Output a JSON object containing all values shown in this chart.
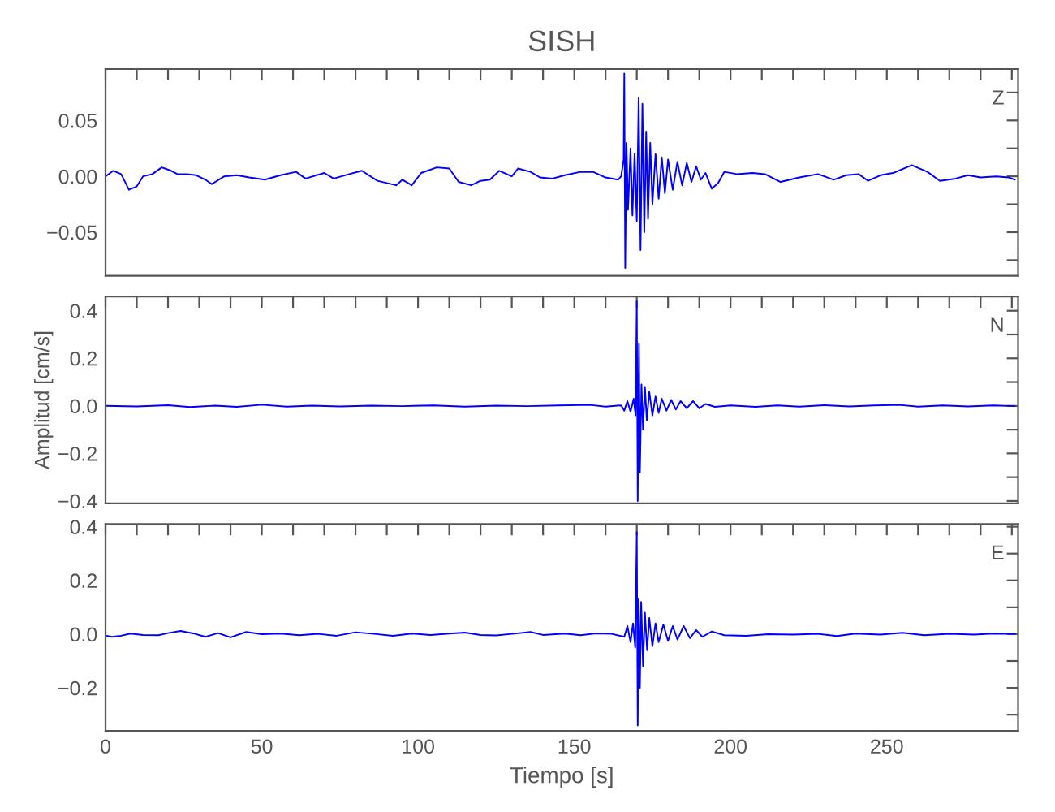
{
  "chart_data": [
    {
      "type": "line",
      "title": "SISH",
      "annotations": [
        "Z"
      ],
      "tick_labels": "y",
      "grid": false,
      "legend": false,
      "xlim": [
        0,
        292
      ],
      "ylim": [
        -0.089,
        0.096
      ],
      "xticks": [
        0,
        {
          "value": 10,
          "label": null
        },
        {
          "value": 20,
          "label": null
        },
        {
          "value": 30,
          "label": null
        },
        {
          "value": 40,
          "label": null
        },
        50,
        {
          "value": 60,
          "label": null
        },
        {
          "value": 70,
          "label": null
        },
        {
          "value": 80,
          "label": null
        },
        {
          "value": 90,
          "label": null
        },
        100,
        {
          "value": 110,
          "label": null
        },
        {
          "value": 120,
          "label": null
        },
        {
          "value": 130,
          "label": null
        },
        {
          "value": 140,
          "label": null
        },
        150,
        {
          "value": 160,
          "label": null
        },
        {
          "value": 170,
          "label": null
        },
        {
          "value": 180,
          "label": null
        },
        {
          "value": 190,
          "label": null
        },
        200,
        {
          "value": 210,
          "label": null
        },
        {
          "value": 220,
          "label": null
        },
        {
          "value": 230,
          "label": null
        },
        {
          "value": 240,
          "label": null
        },
        250,
        {
          "value": 260,
          "label": null
        },
        {
          "value": 270,
          "label": null
        },
        {
          "value": 280,
          "label": null
        },
        {
          "value": 290,
          "label": null
        }
      ],
      "yticks": [
        {
          "value": -0.075,
          "label": null
        },
        {
          "value": -0.05,
          "label": "−0.05"
        },
        {
          "value": -0.025,
          "label": null
        },
        {
          "value": 0,
          "label": "0.00"
        },
        {
          "value": 0.025,
          "label": null
        },
        {
          "value": 0.05,
          "label": "0.05"
        },
        {
          "value": 0.075,
          "label": null
        }
      ],
      "series": [
        {
          "color": "#0000ff",
          "x": [
            0,
            2.5,
            5,
            7.5,
            10,
            12,
            15,
            18,
            21,
            23,
            26,
            29,
            32,
            34,
            38,
            42,
            46,
            51,
            56,
            61,
            64,
            70,
            73,
            78,
            82,
            87,
            93,
            95,
            98,
            101,
            106,
            110,
            113,
            117,
            120,
            123,
            126,
            130,
            132,
            136,
            139,
            143,
            147,
            152,
            156,
            160,
            164,
            165,
            165.8,
            166,
            166.3,
            166.7,
            167.2,
            168,
            168.6,
            169.3,
            170,
            170.6,
            171.2,
            171.8,
            172.4,
            173,
            173.6,
            174.3,
            175,
            176,
            177,
            178,
            179,
            180,
            181.5,
            183,
            184.5,
            186,
            187.5,
            189,
            190.5,
            192,
            194,
            196,
            198,
            202,
            207,
            211,
            216,
            222,
            228,
            233,
            237,
            241,
            244,
            248,
            252,
            258,
            263,
            267,
            272,
            276,
            280,
            285,
            289,
            291
          ],
          "values": [
            0,
            0.005,
            0.002,
            -0.012,
            -0.009,
            0,
            0.002,
            0.008,
            0.005,
            0.002,
            0.002,
            0.001,
            -0.003,
            -0.007,
            0,
            0.001,
            -0.001,
            -0.003,
            0.001,
            0.004,
            -0.002,
            0.003,
            -0.002,
            0.002,
            0.005,
            -0.004,
            -0.008,
            -0.003,
            -0.008,
            0.003,
            0.008,
            0.007,
            -0.005,
            -0.008,
            -0.004,
            -0.003,
            0.005,
            0,
            0.007,
            0.004,
            -0.001,
            -0.002,
            0.001,
            0.004,
            0.004,
            -0.001,
            -0.003,
            0,
            0.015,
            0.092,
            -0.082,
            0.03,
            -0.03,
            0.025,
            -0.035,
            0.02,
            -0.04,
            0.07,
            -0.066,
            0.065,
            -0.05,
            0.04,
            -0.038,
            0.03,
            -0.025,
            0.02,
            -0.02,
            0.017,
            -0.015,
            0.015,
            -0.012,
            0.013,
            -0.008,
            0.012,
            -0.005,
            0.009,
            -0.003,
            0.003,
            -0.011,
            -0.006,
            0.004,
            0.002,
            0.003,
            0.002,
            -0.005,
            -0.001,
            0.002,
            -0.003,
            0.001,
            0.002,
            -0.004,
            0.001,
            0.003,
            0.01,
            0.004,
            -0.004,
            -0.002,
            0.001,
            -0.001,
            0,
            -0.001,
            -0.003
          ]
        }
      ]
    },
    {
      "type": "line",
      "ylabel": "Amplitud [cm/s]",
      "annotations": [
        "N"
      ],
      "tick_labels": "y",
      "grid": false,
      "legend": false,
      "xlim": [
        0,
        292
      ],
      "ylim": [
        -0.41,
        0.46
      ],
      "xticks": [
        0,
        {
          "value": 10,
          "label": null
        },
        {
          "value": 20,
          "label": null
        },
        {
          "value": 30,
          "label": null
        },
        {
          "value": 40,
          "label": null
        },
        50,
        {
          "value": 60,
          "label": null
        },
        {
          "value": 70,
          "label": null
        },
        {
          "value": 80,
          "label": null
        },
        {
          "value": 90,
          "label": null
        },
        100,
        {
          "value": 110,
          "label": null
        },
        {
          "value": 120,
          "label": null
        },
        {
          "value": 130,
          "label": null
        },
        {
          "value": 140,
          "label": null
        },
        150,
        {
          "value": 160,
          "label": null
        },
        {
          "value": 170,
          "label": null
        },
        {
          "value": 180,
          "label": null
        },
        {
          "value": 190,
          "label": null
        },
        200,
        {
          "value": 210,
          "label": null
        },
        {
          "value": 220,
          "label": null
        },
        {
          "value": 230,
          "label": null
        },
        {
          "value": 240,
          "label": null
        },
        250,
        {
          "value": 260,
          "label": null
        },
        {
          "value": 270,
          "label": null
        },
        {
          "value": 280,
          "label": null
        },
        {
          "value": 290,
          "label": null
        }
      ],
      "yticks": [
        {
          "value": -0.4,
          "label": "−0.4"
        },
        {
          "value": -0.3,
          "label": null
        },
        {
          "value": -0.2,
          "label": "−0.2"
        },
        {
          "value": -0.1,
          "label": null
        },
        {
          "value": 0,
          "label": "0.0"
        },
        {
          "value": 0.1,
          "label": null
        },
        {
          "value": 0.2,
          "label": "0.2"
        },
        {
          "value": 0.3,
          "label": null
        },
        {
          "value": 0.4,
          "label": "0.4"
        }
      ],
      "series": [
        {
          "color": "#0000ff",
          "x": [
            0,
            10,
            20,
            27,
            35,
            42,
            50,
            58,
            66,
            75,
            85,
            95,
            105,
            115,
            125,
            135,
            145,
            155,
            160,
            165,
            166,
            167,
            168,
            169,
            169.6,
            170,
            170.3,
            170.7,
            171,
            171.5,
            172,
            172.6,
            173.2,
            174,
            175,
            176,
            177,
            178,
            179.5,
            181,
            182.5,
            184,
            186,
            188,
            190,
            192,
            195,
            200,
            208,
            215,
            222,
            230,
            238,
            246,
            254,
            260,
            268,
            276,
            284,
            291
          ],
          "values": [
            0,
            -0.002,
            0.003,
            -0.005,
            0.001,
            -0.004,
            0.005,
            -0.003,
            0.001,
            -0.002,
            0.001,
            -0.001,
            0.002,
            -0.003,
            0.001,
            -0.001,
            0.002,
            0.004,
            -0.003,
            0.002,
            -0.02,
            0.02,
            -0.025,
            0.03,
            -0.04,
            0.44,
            -0.4,
            0.26,
            -0.28,
            0.09,
            -0.1,
            0.08,
            -0.06,
            0.06,
            -0.04,
            0.04,
            -0.03,
            0.03,
            -0.02,
            0.025,
            -0.015,
            0.02,
            -0.01,
            0.02,
            -0.01,
            0.008,
            -0.004,
            0.002,
            -0.004,
            0.002,
            -0.003,
            0.003,
            -0.002,
            0.002,
            0.004,
            -0.003,
            0.002,
            -0.002,
            0.002,
            -0.001
          ]
        }
      ]
    },
    {
      "type": "line",
      "xlabel": "Tiempo [s]",
      "annotations": [
        "E"
      ],
      "grid": false,
      "legend": false,
      "xlim": [
        0,
        292
      ],
      "ylim": [
        -0.36,
        0.41
      ],
      "xticks": [
        0,
        {
          "value": 10,
          "label": null
        },
        {
          "value": 20,
          "label": null
        },
        {
          "value": 30,
          "label": null
        },
        {
          "value": 40,
          "label": null
        },
        50,
        {
          "value": 60,
          "label": null
        },
        {
          "value": 70,
          "label": null
        },
        {
          "value": 80,
          "label": null
        },
        {
          "value": 90,
          "label": null
        },
        100,
        {
          "value": 110,
          "label": null
        },
        {
          "value": 120,
          "label": null
        },
        {
          "value": 130,
          "label": null
        },
        {
          "value": 140,
          "label": null
        },
        150,
        {
          "value": 160,
          "label": null
        },
        {
          "value": 170,
          "label": null
        },
        {
          "value": 180,
          "label": null
        },
        {
          "value": 190,
          "label": null
        },
        200,
        {
          "value": 210,
          "label": null
        },
        {
          "value": 220,
          "label": null
        },
        {
          "value": 230,
          "label": null
        },
        {
          "value": 240,
          "label": null
        },
        250,
        {
          "value": 260,
          "label": null
        },
        {
          "value": 270,
          "label": null
        },
        {
          "value": 280,
          "label": null
        },
        {
          "value": 290,
          "label": null
        }
      ],
      "yticks": [
        {
          "value": -0.3,
          "label": null
        },
        {
          "value": -0.2,
          "label": "−0.2"
        },
        {
          "value": -0.1,
          "label": null
        },
        {
          "value": 0,
          "label": "0.0"
        },
        {
          "value": 0.1,
          "label": null
        },
        {
          "value": 0.2,
          "label": "0.2"
        },
        {
          "value": 0.3,
          "label": null
        },
        {
          "value": 0.4,
          "label": "0.4"
        }
      ],
      "series": [
        {
          "color": "#0000ff",
          "x": [
            0,
            2,
            5,
            8,
            12,
            17,
            20,
            24,
            28,
            32,
            36,
            40,
            45,
            50,
            56,
            62,
            68,
            74,
            80,
            86,
            92,
            98,
            104,
            110,
            115,
            120,
            125,
            130,
            136,
            140,
            147,
            152,
            157,
            162,
            166,
            167,
            168,
            168.8,
            169.5,
            170,
            170.3,
            170.6,
            171,
            171.4,
            172,
            172.6,
            173.3,
            174,
            175,
            176,
            177,
            178.5,
            180,
            181.5,
            183,
            185,
            187,
            189,
            191,
            194,
            198,
            205,
            212,
            220,
            228,
            234,
            240,
            248,
            255,
            262,
            270,
            278,
            284,
            291
          ],
          "values": [
            -0.005,
            -0.01,
            -0.006,
            0.002,
            -0.003,
            -0.004,
            0.004,
            0.012,
            0.003,
            -0.01,
            0.004,
            -0.012,
            0.008,
            0,
            0.002,
            -0.004,
            0.001,
            -0.006,
            0.007,
            0.001,
            -0.006,
            0.002,
            -0.003,
            0.002,
            0.006,
            -0.003,
            -0.005,
            0.001,
            0.008,
            -0.003,
            0.002,
            -0.004,
            0.003,
            0.001,
            -0.01,
            0.03,
            -0.03,
            0.04,
            -0.05,
            0.38,
            -0.34,
            0.13,
            -0.2,
            0.12,
            -0.12,
            0.08,
            -0.06,
            0.06,
            -0.045,
            0.04,
            -0.03,
            0.035,
            -0.025,
            0.03,
            -0.02,
            0.03,
            -0.015,
            0.015,
            -0.01,
            0.01,
            -0.004,
            -0.006,
            0,
            -0.002,
            0.001,
            -0.007,
            0.002,
            -0.002,
            0.005,
            -0.004,
            0.001,
            -0.002,
            0.002,
            0.001
          ]
        }
      ]
    }
  ]
}
